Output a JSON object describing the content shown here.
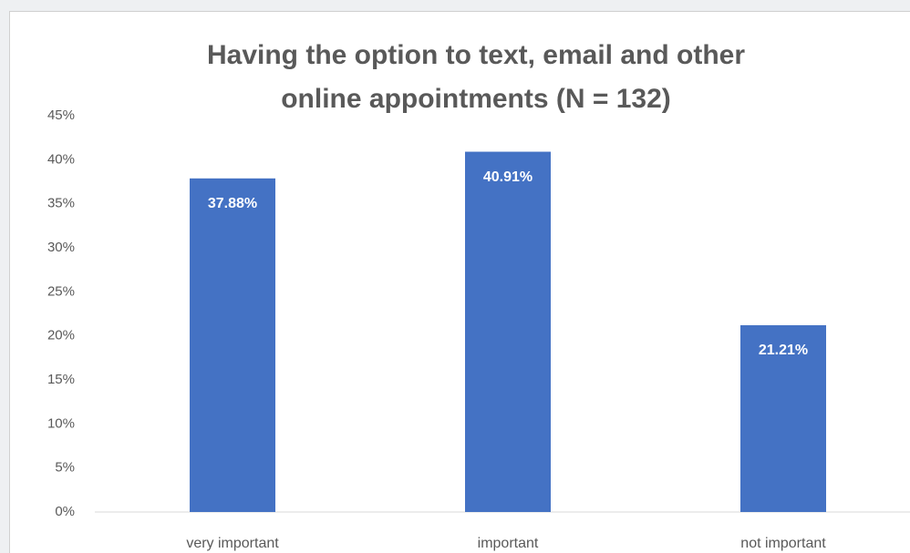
{
  "chart_data": {
    "type": "bar",
    "title": [
      "Having the option to text, email and other",
      "online appointments (N = 132)"
    ],
    "categories": [
      "very important",
      "important",
      "not important"
    ],
    "values": [
      37.88,
      40.91,
      21.21
    ],
    "value_labels": [
      "37.88%",
      "40.91%",
      "21.21%"
    ],
    "color": "#4472c4",
    "ylim": [
      0,
      45
    ],
    "yticks": [
      {
        "value": 0,
        "label": "0%"
      },
      {
        "value": 5,
        "label": "5%"
      },
      {
        "value": 10,
        "label": "10%"
      },
      {
        "value": 15,
        "label": "15%"
      },
      {
        "value": 20,
        "label": "20%"
      },
      {
        "value": 25,
        "label": "25%"
      },
      {
        "value": 30,
        "label": "30%"
      },
      {
        "value": 35,
        "label": "35%"
      },
      {
        "value": 40,
        "label": "40%"
      },
      {
        "value": 45,
        "label": "45%"
      }
    ],
    "grid": false
  }
}
